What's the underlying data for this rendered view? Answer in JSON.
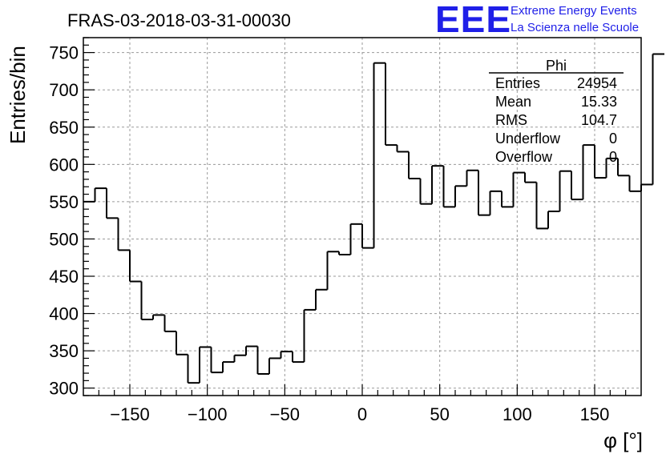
{
  "header": {
    "title": "FRAS-03-2018-03-31-00030",
    "logo_text": "EEE",
    "logo_line1": "Extreme Energy Events",
    "logo_line2": "La Scienza nelle Scuole"
  },
  "stats_box": {
    "name": "Phi",
    "rows": [
      {
        "label": "Entries",
        "value": "24954"
      },
      {
        "label": "Mean",
        "value": "15.33"
      },
      {
        "label": "RMS",
        "value": "104.7"
      },
      {
        "label": "Underflow",
        "value": "0"
      },
      {
        "label": "Overflow",
        "value": "0"
      }
    ]
  },
  "chart_data": {
    "type": "bar",
    "subtype": "step-histogram",
    "title": "FRAS-03-2018-03-31-00030",
    "xlabel": "φ [°]",
    "ylabel": "Entries/bin",
    "xlim": [
      -180,
      180
    ],
    "ylim": [
      290,
      770
    ],
    "xticks": [
      -150,
      -100,
      -50,
      0,
      50,
      100,
      150
    ],
    "yticks": [
      300,
      350,
      400,
      450,
      500,
      550,
      600,
      650,
      700,
      750
    ],
    "bin_width": 7.5,
    "bin_start": -180,
    "values": [
      550,
      568,
      528,
      485,
      443,
      392,
      398,
      376,
      345,
      307,
      355,
      321,
      335,
      344,
      356,
      319,
      340,
      349,
      335,
      405,
      432,
      483,
      479,
      520,
      488,
      736,
      626,
      617,
      581,
      547,
      598,
      543,
      571,
      592,
      532,
      564,
      543,
      589,
      576,
      514,
      537,
      591,
      553,
      626,
      582,
      608,
      585,
      564,
      573,
      748
    ],
    "grid": true,
    "line_color": "#000000"
  }
}
